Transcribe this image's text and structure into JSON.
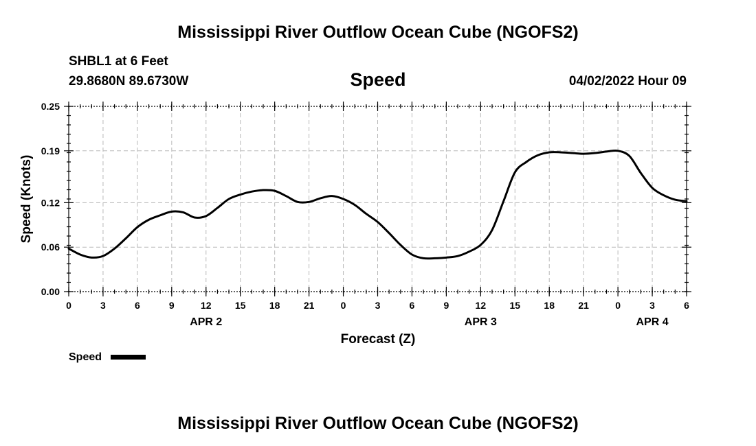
{
  "header": {
    "title": "Mississippi River Outflow Ocean Cube (NGOFS2)",
    "station": "SHBL1 at 6 Feet",
    "coords": "29.8680N  89.6730W",
    "variable": "Speed",
    "datetime": "04/02/2022 Hour 09"
  },
  "footer": {
    "title": "Mississippi River Outflow Ocean Cube (NGOFS2)"
  },
  "legend": {
    "label": "Speed"
  },
  "chart_data": {
    "type": "line",
    "title": "Speed",
    "xlabel": "Forecast (Z)",
    "ylabel": "Speed (Knots)",
    "xlim": [
      0,
      54
    ],
    "ylim": [
      0,
      0.25
    ],
    "yticks": [
      0.0,
      0.06,
      0.12,
      0.19,
      0.25
    ],
    "ytick_labels": [
      "0.00",
      "0.06",
      "0.12",
      "0.19",
      "0.25"
    ],
    "xticks": [
      0,
      3,
      6,
      9,
      12,
      15,
      18,
      21,
      24,
      27,
      30,
      33,
      36,
      39,
      42,
      45,
      48,
      51,
      54
    ],
    "xtick_labels": [
      "0",
      "3",
      "6",
      "9",
      "12",
      "15",
      "18",
      "21",
      "0",
      "3",
      "6",
      "9",
      "12",
      "15",
      "18",
      "21",
      "0",
      "3",
      "6"
    ],
    "date_labels": [
      {
        "x": 12,
        "label": "APR 2"
      },
      {
        "x": 36,
        "label": "APR 3"
      },
      {
        "x": 51,
        "label": "APR 4"
      }
    ],
    "grid": true,
    "legend_position": "bottom-left",
    "series": [
      {
        "name": "Speed",
        "color": "#000000",
        "x": [
          0,
          1,
          2,
          3,
          4,
          5,
          6,
          7,
          8,
          9,
          10,
          11,
          12,
          13,
          14,
          15,
          16,
          17,
          18,
          19,
          20,
          21,
          22,
          23,
          24,
          25,
          26,
          27,
          28,
          29,
          30,
          31,
          32,
          33,
          34,
          35,
          36,
          37,
          38,
          39,
          40,
          41,
          42,
          43,
          44,
          45,
          46,
          47,
          48,
          49,
          50,
          51,
          52,
          53,
          54
        ],
        "values": [
          0.058,
          0.05,
          0.046,
          0.048,
          0.058,
          0.072,
          0.087,
          0.097,
          0.103,
          0.108,
          0.107,
          0.1,
          0.102,
          0.113,
          0.125,
          0.131,
          0.135,
          0.137,
          0.136,
          0.129,
          0.121,
          0.121,
          0.126,
          0.129,
          0.125,
          0.117,
          0.105,
          0.094,
          0.079,
          0.063,
          0.05,
          0.045,
          0.045,
          0.046,
          0.048,
          0.054,
          0.063,
          0.083,
          0.122,
          0.161,
          0.175,
          0.184,
          0.188,
          0.188,
          0.187,
          0.186,
          0.187,
          0.189,
          0.19,
          0.183,
          0.16,
          0.14,
          0.13,
          0.124,
          0.122
        ]
      }
    ]
  }
}
